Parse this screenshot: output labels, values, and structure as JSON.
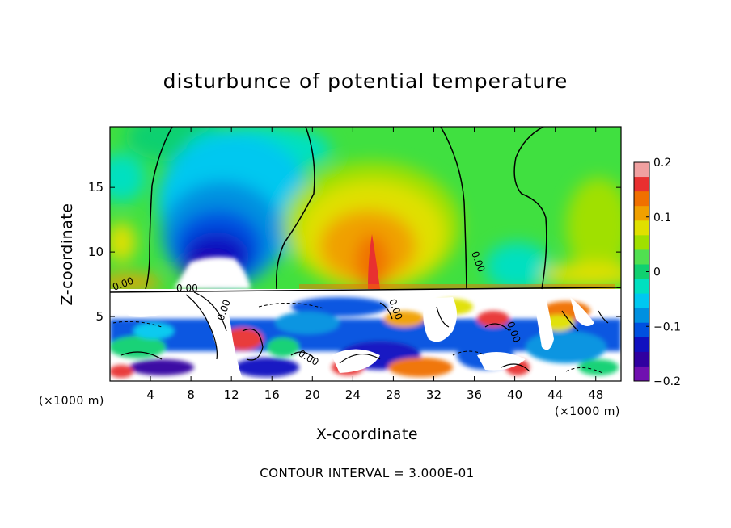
{
  "chart_data": {
    "type": "heatmap",
    "title": "disturbunce of potential temperature",
    "xlabel": "X-coordinate",
    "ylabel": "Z-coordinate",
    "x_unit": "(×1000 m)",
    "x_ticks": [
      4,
      8,
      12,
      16,
      20,
      24,
      28,
      32,
      36,
      40,
      44,
      48
    ],
    "y_ticks": [
      5,
      10,
      15
    ],
    "xlim": [
      0,
      50.5
    ],
    "ylim": [
      0,
      19.7
    ],
    "colorbar": {
      "ticks": [
        "0.2",
        "0.1",
        "0",
        "−0.1",
        "−0.2"
      ],
      "range": [
        -0.2,
        0.2
      ],
      "levels": [
        "#f0a0a0",
        "#e83030",
        "#f07000",
        "#f0a000",
        "#e0e000",
        "#a0e000",
        "#50e050",
        "#10d070",
        "#00e0c0",
        "#00c8f0",
        "#0090e0",
        "#0050e0",
        "#1010c0",
        "#3000a0",
        "#7010b0"
      ]
    },
    "contour_label": "0.00",
    "footer": "CONTOUR INTERVAL = 3.000E-01"
  }
}
